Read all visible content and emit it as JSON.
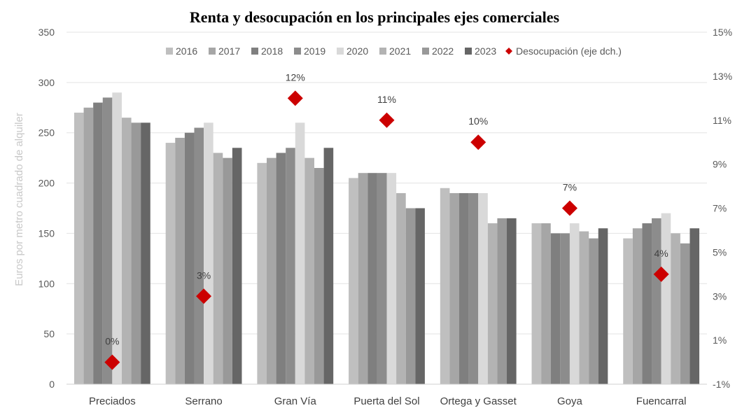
{
  "chart_data": {
    "type": "bar",
    "title": "Renta y desocupación en los principales ejes comerciales",
    "ylabel": "Euros  por metro cuadrado de alquiler",
    "ylim": [
      0,
      350
    ],
    "yticks": [
      "0",
      "50",
      "100",
      "150",
      "200",
      "250",
      "300",
      "350"
    ],
    "y2lim": [
      -1,
      15
    ],
    "y2ticks": [
      "-1%",
      "1%",
      "3%",
      "5%",
      "7%",
      "9%",
      "11%",
      "13%",
      "15%"
    ],
    "grid": true,
    "legend_position": "top",
    "categories": [
      "Preciados",
      "Serrano",
      "Gran Vía",
      "Puerta del Sol",
      "Ortega y Gasset",
      "Goya",
      "Fuencarral"
    ],
    "series": [
      {
        "name": "2016",
        "color": "#bfbfbf",
        "values": [
          270,
          240,
          220,
          205,
          195,
          160,
          145
        ]
      },
      {
        "name": "2017",
        "color": "#a6a6a6",
        "values": [
          275,
          245,
          225,
          210,
          190,
          160,
          155
        ]
      },
      {
        "name": "2018",
        "color": "#7f7f7f",
        "values": [
          280,
          250,
          230,
          210,
          190,
          150,
          160
        ]
      },
      {
        "name": "2019",
        "color": "#8c8c8c",
        "values": [
          285,
          255,
          235,
          210,
          190,
          150,
          165
        ]
      },
      {
        "name": "2020",
        "color": "#d9d9d9",
        "values": [
          290,
          260,
          260,
          210,
          190,
          160,
          170
        ]
      },
      {
        "name": "2021",
        "color": "#b3b3b3",
        "values": [
          265,
          230,
          225,
          190,
          160,
          152,
          150
        ]
      },
      {
        "name": "2022",
        "color": "#999999",
        "values": [
          260,
          225,
          215,
          175,
          165,
          145,
          140
        ]
      },
      {
        "name": "2023",
        "color": "#666666",
        "values": [
          260,
          235,
          235,
          175,
          165,
          155,
          155
        ]
      }
    ],
    "secondary_series": {
      "name": "Desocupación (eje dch.)",
      "color": "#cc0000",
      "axis": "right",
      "values": [
        0,
        3,
        12,
        11,
        10,
        7,
        4
      ],
      "labels": [
        "0%",
        "3%",
        "12%",
        "11%",
        "10%",
        "7%",
        "4%"
      ]
    }
  }
}
